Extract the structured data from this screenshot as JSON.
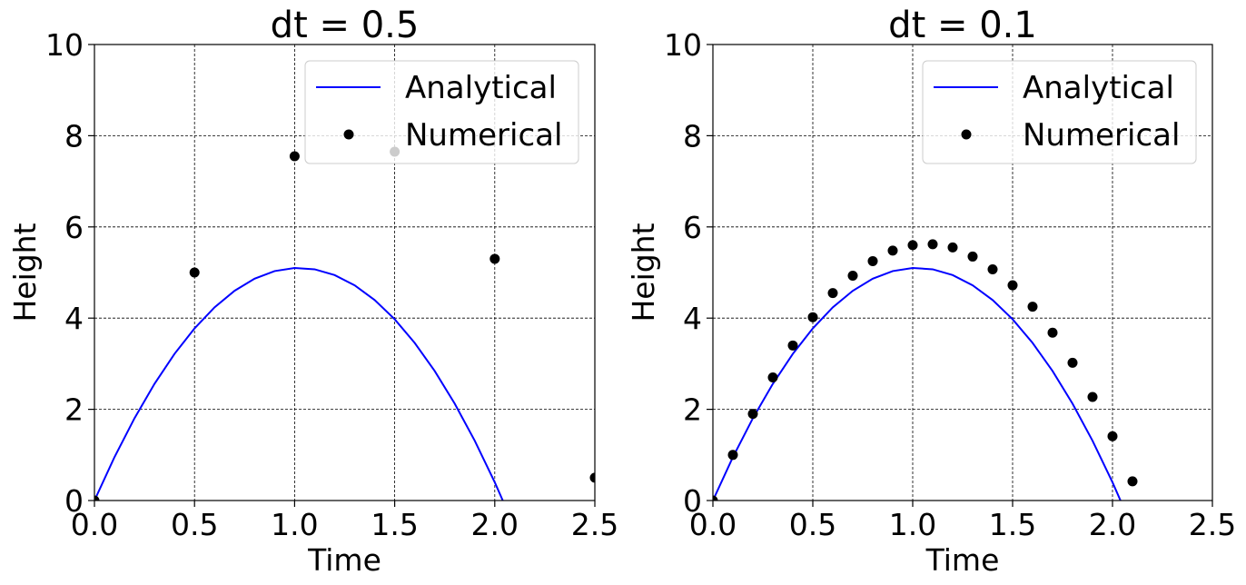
{
  "chart_data": [
    {
      "type": "line+scatter",
      "title": "dt = 0.5",
      "xlabel": "Time",
      "ylabel": "Height",
      "xlim": [
        0,
        2.5
      ],
      "ylim": [
        0,
        10
      ],
      "xticks": [
        "0.0",
        "0.5",
        "1.0",
        "1.5",
        "2.0",
        "2.5"
      ],
      "yticks": [
        "0",
        "2",
        "4",
        "6",
        "8",
        "10"
      ],
      "grid": true,
      "legend_position": "top-right",
      "series": [
        {
          "name": "Analytical",
          "kind": "line",
          "color": "#0000ff",
          "x": [
            0,
            0.1,
            0.2,
            0.3,
            0.4,
            0.5,
            0.6,
            0.7,
            0.8,
            0.9,
            1.0,
            1.1,
            1.2,
            1.3,
            1.4,
            1.5,
            1.6,
            1.7,
            1.8,
            1.9,
            2.0,
            2.04
          ],
          "y": [
            0,
            0.951,
            1.804,
            2.559,
            3.216,
            3.775,
            4.236,
            4.599,
            4.864,
            5.031,
            5.1,
            5.071,
            4.944,
            4.719,
            4.396,
            3.975,
            3.456,
            2.839,
            2.124,
            1.311,
            0.4,
            0
          ]
        },
        {
          "name": "Numerical",
          "kind": "scatter",
          "color": "#000000",
          "x": [
            0,
            0.5,
            1.0,
            1.5,
            2.0,
            2.5
          ],
          "y": [
            0,
            5.0,
            7.55,
            7.65,
            5.3,
            0.5
          ]
        }
      ]
    },
    {
      "type": "line+scatter",
      "title": "dt = 0.1",
      "xlabel": "Time",
      "ylabel": "Height",
      "xlim": [
        0,
        2.5
      ],
      "ylim": [
        0,
        10
      ],
      "xticks": [
        "0.0",
        "0.5",
        "1.0",
        "1.5",
        "2.0",
        "2.5"
      ],
      "yticks": [
        "0",
        "2",
        "4",
        "6",
        "8",
        "10"
      ],
      "grid": true,
      "legend_position": "top-right",
      "series": [
        {
          "name": "Analytical",
          "kind": "line",
          "color": "#0000ff",
          "x": [
            0,
            0.1,
            0.2,
            0.3,
            0.4,
            0.5,
            0.6,
            0.7,
            0.8,
            0.9,
            1.0,
            1.1,
            1.2,
            1.3,
            1.4,
            1.5,
            1.6,
            1.7,
            1.8,
            1.9,
            2.0,
            2.04
          ],
          "y": [
            0,
            0.951,
            1.804,
            2.559,
            3.216,
            3.775,
            4.236,
            4.599,
            4.864,
            5.031,
            5.1,
            5.071,
            4.944,
            4.719,
            4.396,
            3.975,
            3.456,
            2.839,
            2.124,
            1.311,
            0.4,
            0
          ]
        },
        {
          "name": "Numerical",
          "kind": "scatter",
          "color": "#000000",
          "x": [
            0,
            0.1,
            0.2,
            0.3,
            0.4,
            0.5,
            0.6,
            0.7,
            0.8,
            0.9,
            1.0,
            1.1,
            1.2,
            1.3,
            1.4,
            1.5,
            1.6,
            1.7,
            1.8,
            1.9,
            2.0,
            2.1
          ],
          "y": [
            0,
            1.0,
            1.9,
            2.7,
            3.4,
            4.02,
            4.55,
            4.93,
            5.25,
            5.48,
            5.6,
            5.62,
            5.55,
            5.35,
            5.07,
            4.72,
            4.25,
            3.68,
            3.02,
            2.27,
            1.41,
            0.42
          ]
        }
      ]
    }
  ]
}
